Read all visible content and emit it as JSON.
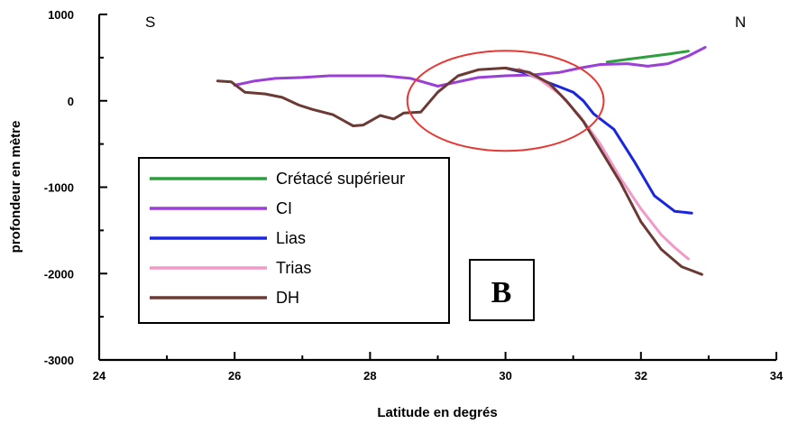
{
  "chart_data": {
    "type": "line",
    "xlabel": "Latitude en degrés",
    "ylabel": "profondeur en mètre",
    "xlim": [
      24,
      34
    ],
    "ylim": [
      -3000,
      1000
    ],
    "x_ticks": [
      "24",
      "26",
      "28",
      "30",
      "32",
      "34"
    ],
    "y_ticks": [
      "1000",
      "0",
      "-1000",
      "-2000",
      "-3000"
    ],
    "corner_labels": {
      "left": "S",
      "right": "N"
    },
    "panel_label": "B",
    "legend_position": "bottom-left",
    "grid": false,
    "highlight": {
      "shape": "ellipse",
      "color": "#e53935",
      "center": [
        30.0,
        0
      ],
      "radius_x": 1.45,
      "radius_y": 580
    },
    "series": [
      {
        "name": "Crétacé supérieur",
        "color": "#2e9e3e",
        "x": [
          31.5,
          31.8,
          32.1,
          32.4,
          32.7
        ],
        "y": [
          450,
          480,
          510,
          540,
          575
        ]
      },
      {
        "name": "CI",
        "color": "#9b3fd6",
        "x": [
          26.0,
          26.3,
          26.6,
          27.0,
          27.4,
          27.8,
          28.2,
          28.6,
          29.0,
          29.3,
          29.6,
          30.0,
          30.4,
          30.8,
          31.1,
          31.4,
          31.8,
          32.1,
          32.4,
          32.7,
          32.95
        ],
        "y": [
          180,
          230,
          260,
          270,
          290,
          290,
          290,
          260,
          170,
          220,
          270,
          290,
          300,
          330,
          380,
          420,
          430,
          400,
          430,
          520,
          620
        ]
      },
      {
        "name": "Lias",
        "color": "#1a25e0",
        "x": [
          30.0,
          30.3,
          30.6,
          30.8,
          31.0,
          31.15,
          31.3,
          31.6,
          31.9,
          32.2,
          32.5,
          32.75
        ],
        "y": [
          380,
          320,
          220,
          160,
          100,
          0,
          -150,
          -330,
          -700,
          -1100,
          -1280,
          -1300
        ]
      },
      {
        "name": "Trias",
        "color": "#f29ac7",
        "x": [
          30.2,
          30.5,
          30.8,
          31.1,
          31.4,
          31.7,
          32.0,
          32.3,
          32.5,
          32.7
        ],
        "y": [
          370,
          250,
          80,
          -180,
          -500,
          -900,
          -1250,
          -1550,
          -1700,
          -1830
        ]
      },
      {
        "name": "DH",
        "color": "#6b3a35",
        "x": [
          25.75,
          25.95,
          26.15,
          26.45,
          26.7,
          26.95,
          27.15,
          27.45,
          27.75,
          27.9,
          28.15,
          28.35,
          28.5,
          28.75,
          29.0,
          29.3,
          29.6,
          30.0,
          30.35,
          30.65,
          30.9,
          31.15,
          31.4,
          31.7,
          32.0,
          32.3,
          32.6,
          32.9
        ],
        "y": [
          230,
          220,
          100,
          80,
          40,
          -50,
          -100,
          -160,
          -290,
          -280,
          -170,
          -210,
          -140,
          -130,
          100,
          290,
          360,
          380,
          330,
          200,
          0,
          -240,
          -560,
          -950,
          -1400,
          -1720,
          -1920,
          -2010
        ]
      }
    ]
  }
}
